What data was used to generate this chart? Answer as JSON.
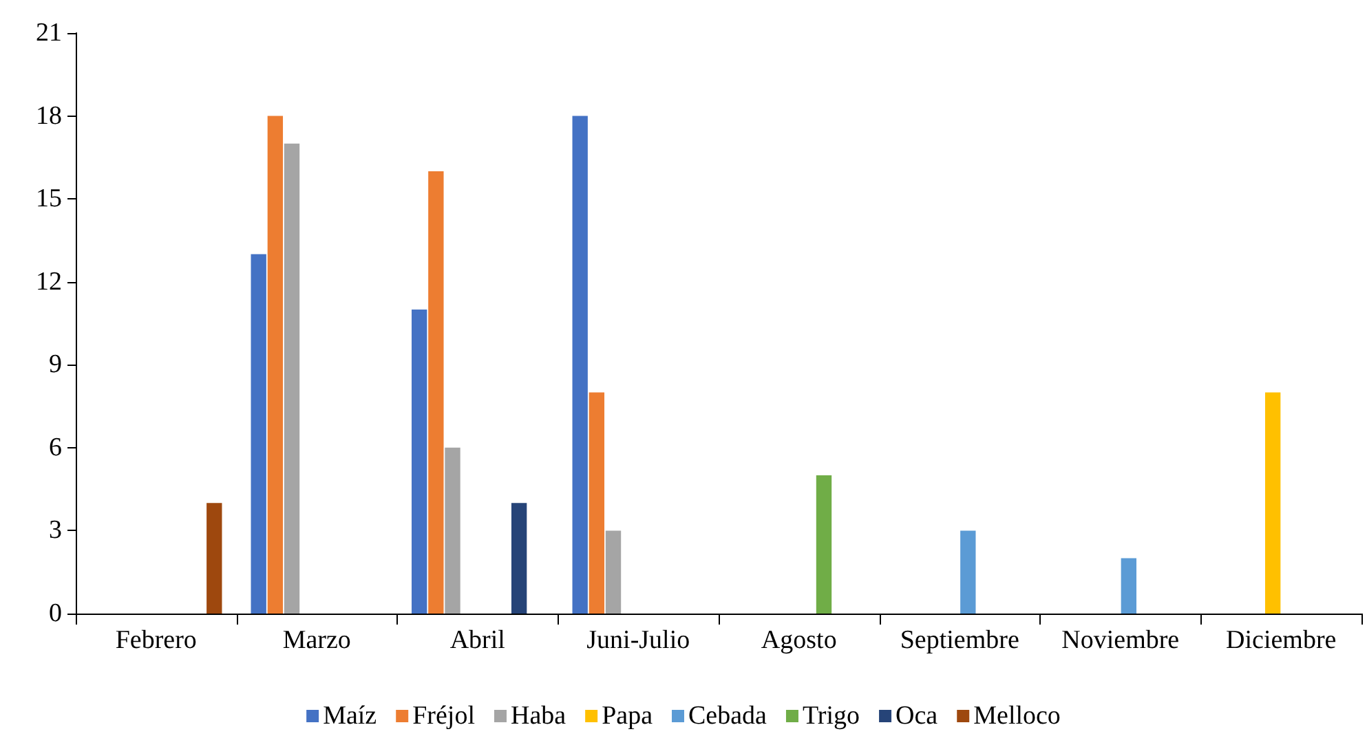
{
  "chart_data": {
    "type": "bar",
    "categories": [
      "Febrero",
      "Marzo",
      "Abril",
      "Juni-Julio",
      "Agosto",
      "Septiembre",
      "Noviembre",
      "Diciembre"
    ],
    "series": [
      {
        "name": "Maíz",
        "color": "#4472c4",
        "values": [
          null,
          13,
          11,
          18,
          null,
          null,
          null,
          null
        ]
      },
      {
        "name": "Fréjol",
        "color": "#ed7d31",
        "values": [
          null,
          18,
          16,
          8,
          null,
          null,
          null,
          null
        ]
      },
      {
        "name": "Haba",
        "color": "#a5a5a5",
        "values": [
          null,
          17,
          6,
          3,
          null,
          null,
          null,
          null
        ]
      },
      {
        "name": "Papa",
        "color": "#ffc000",
        "values": [
          null,
          null,
          null,
          null,
          null,
          null,
          null,
          8
        ]
      },
      {
        "name": "Cebada",
        "color": "#5b9bd5",
        "values": [
          null,
          null,
          null,
          null,
          null,
          3,
          2,
          null
        ]
      },
      {
        "name": "Trigo",
        "color": "#70ad47",
        "values": [
          null,
          null,
          null,
          null,
          5,
          null,
          null,
          null
        ]
      },
      {
        "name": "Oca",
        "color": "#264478",
        "values": [
          null,
          null,
          4,
          null,
          null,
          null,
          null,
          null
        ]
      },
      {
        "name": "Melloco",
        "color": "#9e480e",
        "values": [
          4,
          null,
          null,
          null,
          null,
          null,
          null,
          null
        ]
      }
    ],
    "ylim": [
      0,
      21
    ],
    "yticks": [
      0,
      3,
      6,
      9,
      12,
      15,
      18,
      21
    ],
    "grid": false,
    "legend": "bottom"
  }
}
